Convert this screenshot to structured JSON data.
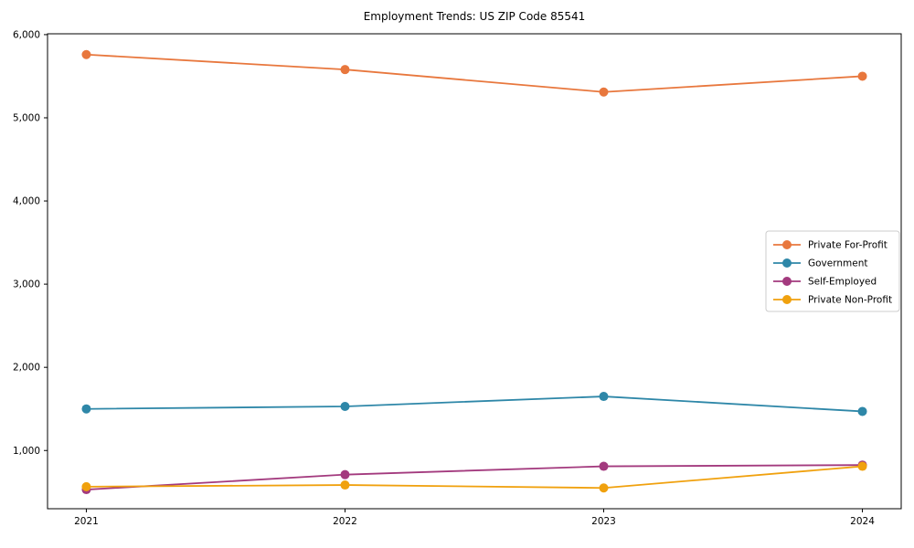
{
  "window": {
    "background": "#ffffff"
  },
  "chart_data": {
    "type": "line",
    "title": "Employment Trends: US ZIP Code 85541",
    "xlabel": "",
    "ylabel": "",
    "categories": [
      2021,
      2022,
      2023,
      2024
    ],
    "x_tick_labels": [
      "2021",
      "2022",
      "2023",
      "2024"
    ],
    "y_tick_labels": [
      "1,000",
      "2,000",
      "3,000",
      "4,000",
      "5,000",
      "6,000"
    ],
    "y_ticks": [
      1000,
      2000,
      3000,
      4000,
      5000,
      6000
    ],
    "xlim": [
      2020.85,
      2024.15
    ],
    "ylim": [
      300,
      6010
    ],
    "grid": false,
    "legend_position": "center-right",
    "axis_color": "#000000",
    "tick_label_color": "#000000",
    "legend_border_color": "#cccccc",
    "series": [
      {
        "name": "Private For-Profit",
        "color": "#e8773d",
        "values": [
          5760,
          5580,
          5310,
          5500
        ]
      },
      {
        "name": "Government",
        "color": "#2e87a8",
        "values": [
          1500,
          1530,
          1650,
          1470
        ]
      },
      {
        "name": "Self-Employed",
        "color": "#a33a7e",
        "values": [
          530,
          710,
          810,
          825
        ]
      },
      {
        "name": "Private Non-Profit",
        "color": "#f0a10e",
        "values": [
          565,
          585,
          550,
          810
        ]
      }
    ]
  }
}
